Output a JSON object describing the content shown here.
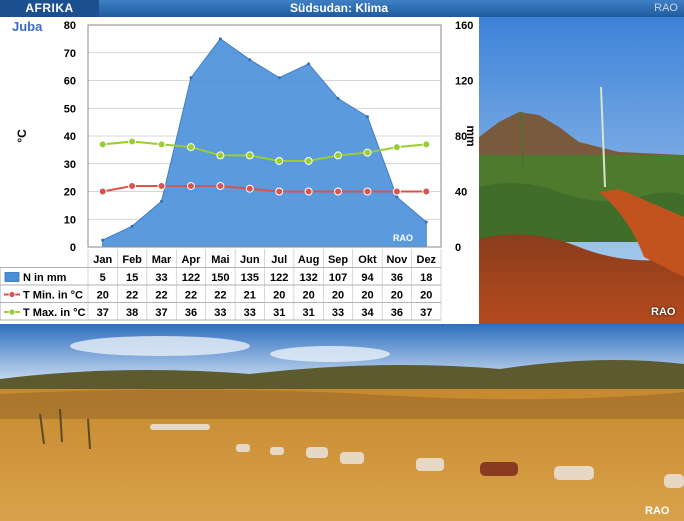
{
  "header": {
    "region": "AFRIKA",
    "title": "Südsudan: Klima",
    "brand": "RAO"
  },
  "chart_data": {
    "type": "climate",
    "station": "Juba",
    "months": [
      "Jan",
      "Feb",
      "Mar",
      "Apr",
      "Mai",
      "Jun",
      "Jul",
      "Aug",
      "Sep",
      "Okt",
      "Nov",
      "Dez"
    ],
    "y_left": {
      "label": "°C",
      "range": [
        0,
        80
      ],
      "ticks": [
        "0",
        "10",
        "20",
        "30",
        "40",
        "50",
        "60",
        "70",
        "80"
      ]
    },
    "y_right": {
      "label": "mm",
      "range": [
        0,
        160
      ],
      "ticks": [
        "0",
        "40",
        "80",
        "120",
        "160"
      ]
    },
    "series": [
      {
        "name": "N in mm",
        "type": "area",
        "axis": "right",
        "color": "#4a90d9",
        "values": [
          5,
          15,
          33,
          122,
          150,
          135,
          122,
          132,
          107,
          94,
          36,
          18
        ]
      },
      {
        "name": "T Min. in °C",
        "type": "line",
        "axis": "left",
        "color": "#d9534f",
        "values": [
          20,
          22,
          22,
          22,
          22,
          21,
          20,
          20,
          20,
          20,
          20,
          20
        ]
      },
      {
        "name": "T Max. in °C",
        "type": "line",
        "axis": "left",
        "color": "#9acd32",
        "values": [
          37,
          38,
          37,
          36,
          33,
          33,
          31,
          31,
          33,
          34,
          36,
          37
        ]
      }
    ],
    "table_values": {
      "N in mm": [
        "5",
        "15",
        "33",
        "122",
        "150",
        "135",
        "122",
        "132",
        "107",
        "94",
        "36",
        "18"
      ],
      "T Min. in °C": [
        "20",
        "22",
        "22",
        "22",
        "22",
        "21",
        "20",
        "20",
        "20",
        "20",
        "20",
        "20"
      ],
      "T Max. in °C": [
        "37",
        "38",
        "37",
        "36",
        "33",
        "33",
        "31",
        "31",
        "33",
        "34",
        "36",
        "37"
      ]
    },
    "watermark": "RAO",
    "grid": true
  },
  "photos": {
    "right_watermark": "RAO",
    "bottom_watermark": "RAO"
  }
}
